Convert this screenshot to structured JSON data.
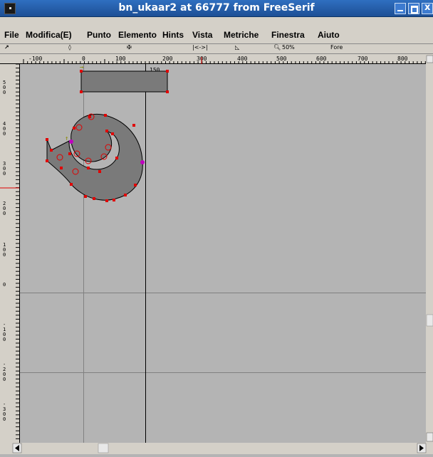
{
  "window": {
    "title": "bn_ukaar2 at 66777 from FreeSerif"
  },
  "menu": {
    "items": [
      "File",
      "Modifica(E)",
      "Punto",
      "Elemento",
      "Hints",
      "Vista",
      "Metriche",
      "Finestra",
      "Aiuto"
    ]
  },
  "infobar": {
    "zoom": "50%",
    "layer": "Fore",
    "tool_rect": "|<->|"
  },
  "ruler": {
    "h_labels": [
      "-100",
      "0",
      "100",
      "200",
      "300",
      "400",
      "500",
      "600",
      "700",
      "800"
    ],
    "v_labels": [
      "500",
      "400",
      "300",
      "200",
      "100",
      "0",
      "-100",
      "-200",
      "-300"
    ],
    "width_label": "150"
  },
  "colors": {
    "canvas": "#b4b4b4",
    "glyph_fill": "#7a7a7a",
    "point": "#e00000",
    "extremum": "#c000c0",
    "title_bar": "#2f6fc0"
  }
}
